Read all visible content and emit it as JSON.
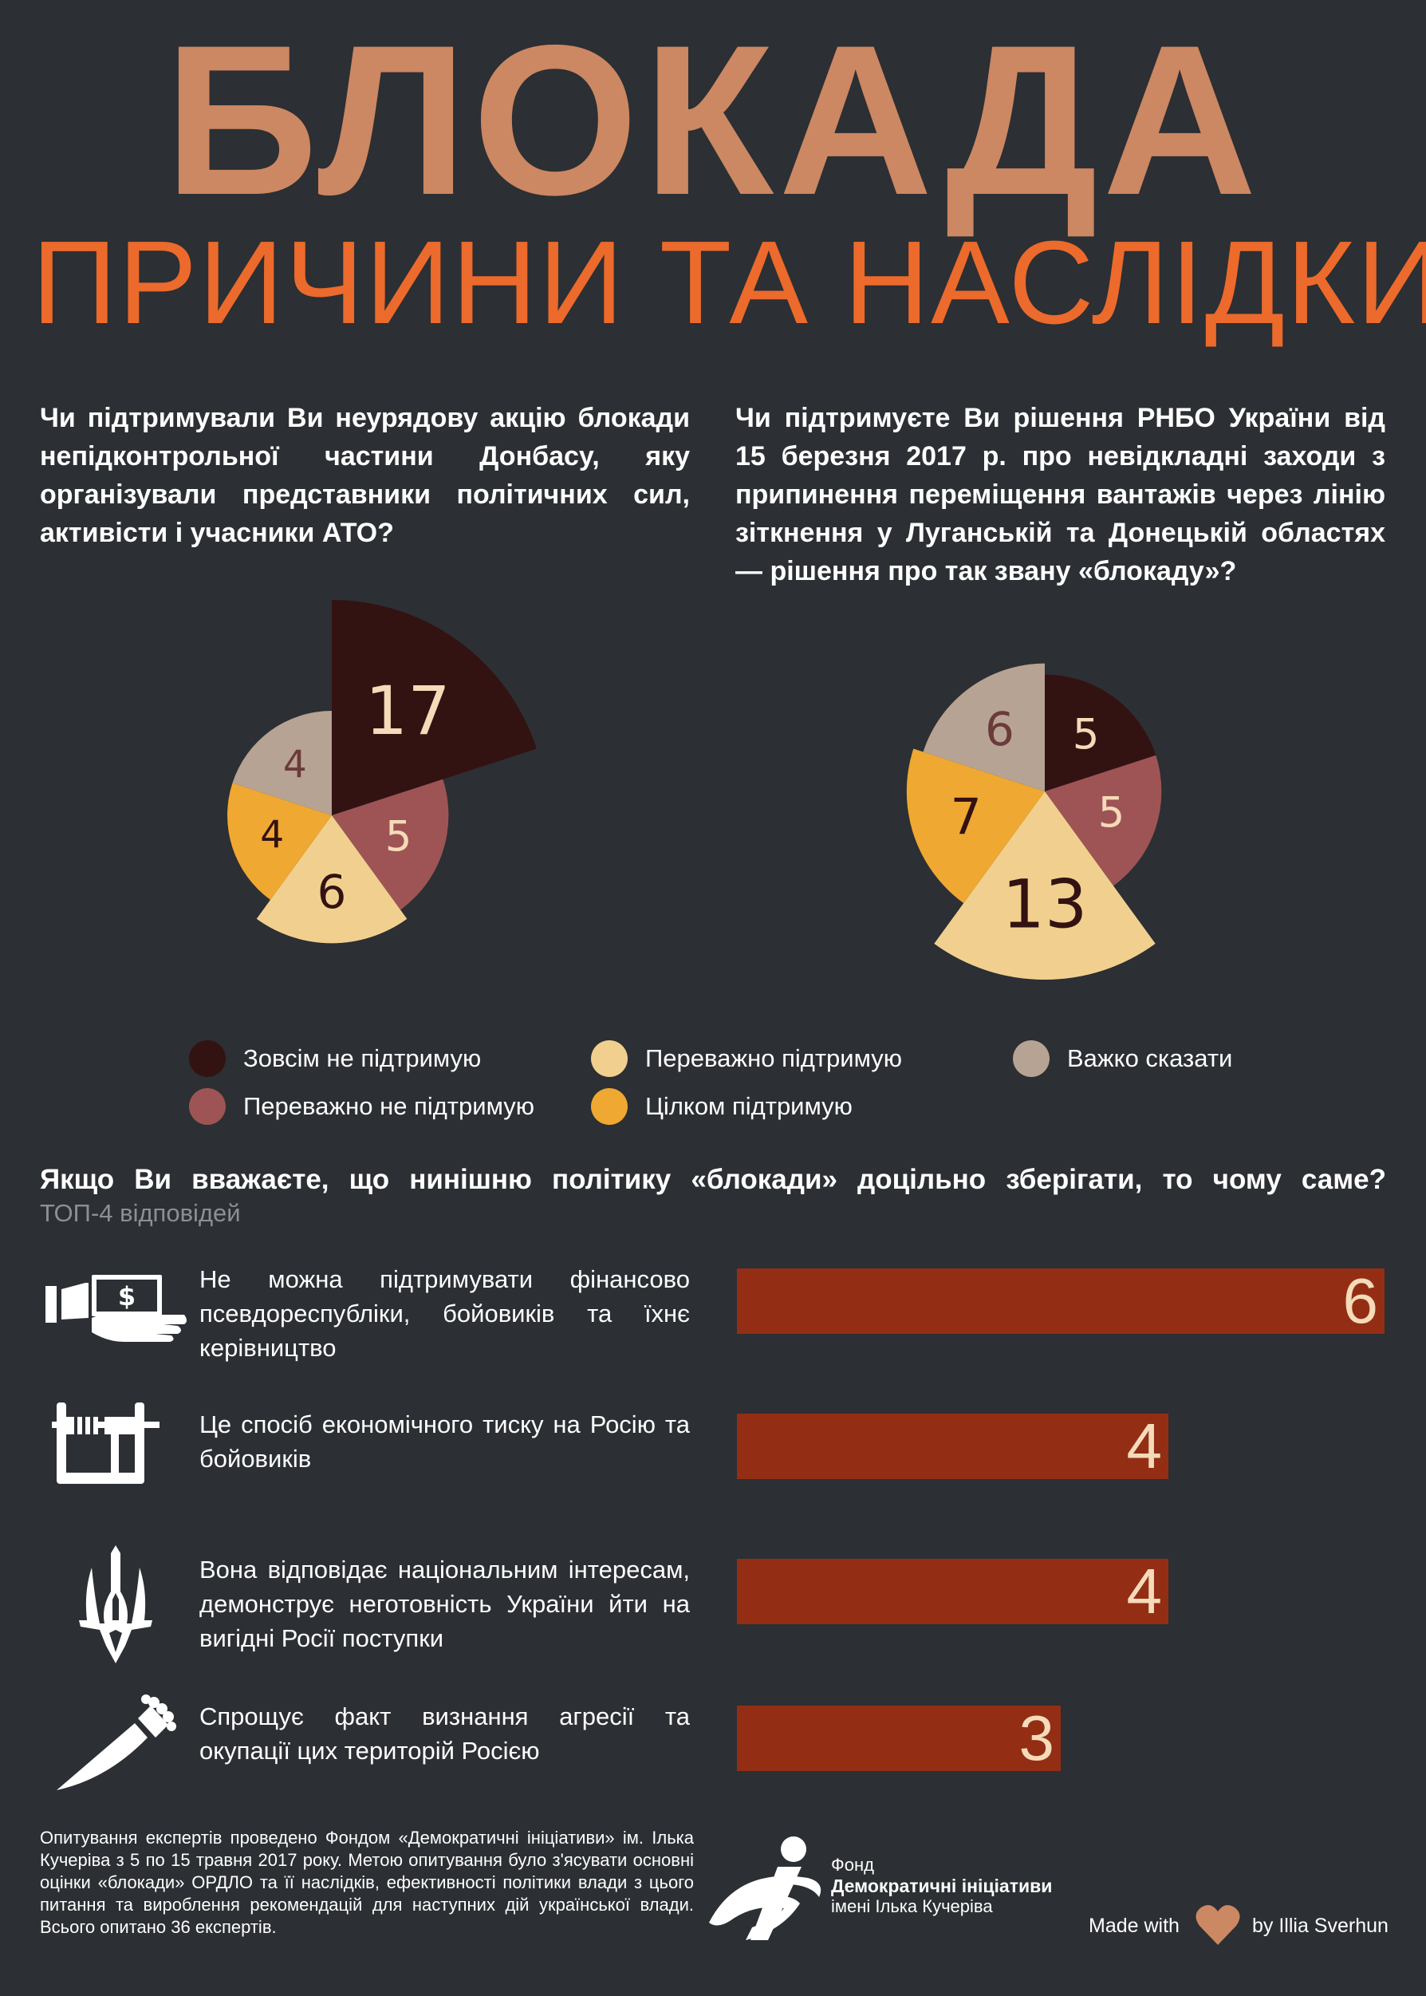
{
  "header": {
    "title": "БЛОКАДА",
    "subtitle": "ПРИЧИНИ ТА НАСЛІДКИ"
  },
  "questions": {
    "q1": "Чи підтримували Ви неурядову акцію блокади непідконтрольної частини Донбасу, яку організували представники політичних сил, активісти і учасники АТО?",
    "q2": "Чи підтримуєте Ви рішення РНБО України від 15 березня 2017 р. про невідкладні заходи з припинення переміщення вантажів через лінію зіткнення у Луганській та Донецькій областях — рішення про так звану «блокаду»?",
    "q3": "Якщо Ви вважаєте, що нинішню політику «блокади» доцільно зберігати, то чому саме?",
    "q3_sub": "ТОП-4 відповідей"
  },
  "colors": {
    "background": "#2c2f33",
    "title": "#cc8763",
    "subtitle": "#ec6a2b",
    "bar": "#932e15",
    "bar_value": "#f5dbb9"
  },
  "legend": [
    {
      "label": "Зовсім не підтримую",
      "color": "#331212"
    },
    {
      "label": "Переважно не підтримую",
      "color": "#9e5454"
    },
    {
      "label": "Переважно підтримую",
      "color": "#f1d08f"
    },
    {
      "label": "Цілком підтримую",
      "color": "#efa831"
    },
    {
      "label": "Важко сказати",
      "color": "#b7a393"
    }
  ],
  "chart_data": [
    {
      "type": "pie",
      "title": "Чи підтримували Ви неурядову акцію блокади непідконтрольної частини Донбасу, яку організували представники політичних сил, активісти і учасники АТО?",
      "categories": [
        "Зовсім не підтримую",
        "Переважно не підтримую",
        "Переважно підтримую",
        "Цілком підтримую",
        "Важко сказати"
      ],
      "values": [
        17,
        5,
        6,
        4,
        4
      ],
      "colors": [
        "#331212",
        "#9e5454",
        "#f1d08f",
        "#efa831",
        "#b7a393"
      ],
      "label_colors": [
        "#f5dbb9",
        "#f5dbb9",
        "#331212",
        "#331212",
        "#6b3a3a"
      ],
      "style": "polar-area"
    },
    {
      "type": "pie",
      "title": "Чи підтримуєте Ви рішення РНБО України від 15 березня 2017 р. про невідкладні заходи з припинення переміщення вантажів через лінію зіткнення у Луганській та Донецькій областях — рішення про так звану «блокаду»?",
      "categories": [
        "Зовсім не підтримую",
        "Переважно не підтримую",
        "Переважно підтримую",
        "Цілком підтримую",
        "Важко сказати"
      ],
      "values": [
        5,
        5,
        13,
        7,
        6
      ],
      "colors": [
        "#331212",
        "#9e5454",
        "#f1d08f",
        "#efa831",
        "#b7a393"
      ],
      "label_colors": [
        "#f5dbb9",
        "#f5dbb9",
        "#331212",
        "#331212",
        "#6b3a3a"
      ],
      "style": "polar-area"
    },
    {
      "type": "bar",
      "title": "Якщо Ви вважаєте, що нинішню політику «блокади» доцільно зберігати, то чому саме?",
      "categories": [
        "Не можна підтримувати фінансово псевдореспубліки, бойовиків та їхнє керівництво",
        "Це спосіб економічного тиску на Росію та бойовиків",
        "Вона відповідає національним інтересам, демонструє неготовність України йти на вигідні Росії поступки",
        "Спрощує факт визнання агресії та окупації цих територій Росією"
      ],
      "values": [
        6,
        4,
        4,
        3
      ],
      "xlim": [
        0,
        6
      ]
    }
  ],
  "reasons": [
    {
      "icon": "money-hand-icon",
      "text": "Не можна підтримувати фінансово псевдореспубліки, бойовиків та їхнє керівництво",
      "value": "6"
    },
    {
      "icon": "vise-icon",
      "text": "Це спосіб економічного тиску на Росію та бойовиків",
      "value": "4"
    },
    {
      "icon": "trident-icon",
      "text": "Вона відповідає національним інтересам, демонструє неготовність України йти на вигідні Росії поступки",
      "value": "4"
    },
    {
      "icon": "knife-icon",
      "text": "Спрощує факт визнання агресії та окупації цих територій Росією",
      "value": "3"
    }
  ],
  "footer": {
    "note": "Опитування експертів проведено Фондом «Демократичні ініціативи» ім. Ілька Кучеріва з 5 по 15 травня 2017 року. Метою опитування було з'ясувати основні оцінки «блокади» ОРДЛО та її наслідків, ефективності політики влади з цього питання та вироблення рекомендацій для наступних дій української влади. Всього опитано 36 експертів.",
    "fund_line1": "Фонд",
    "fund_line2": "Демократичні ініціативи",
    "fund_line3": "імені Ілька Кучеріва",
    "made_with": "Made with",
    "author": "by Illia Sverhun"
  }
}
